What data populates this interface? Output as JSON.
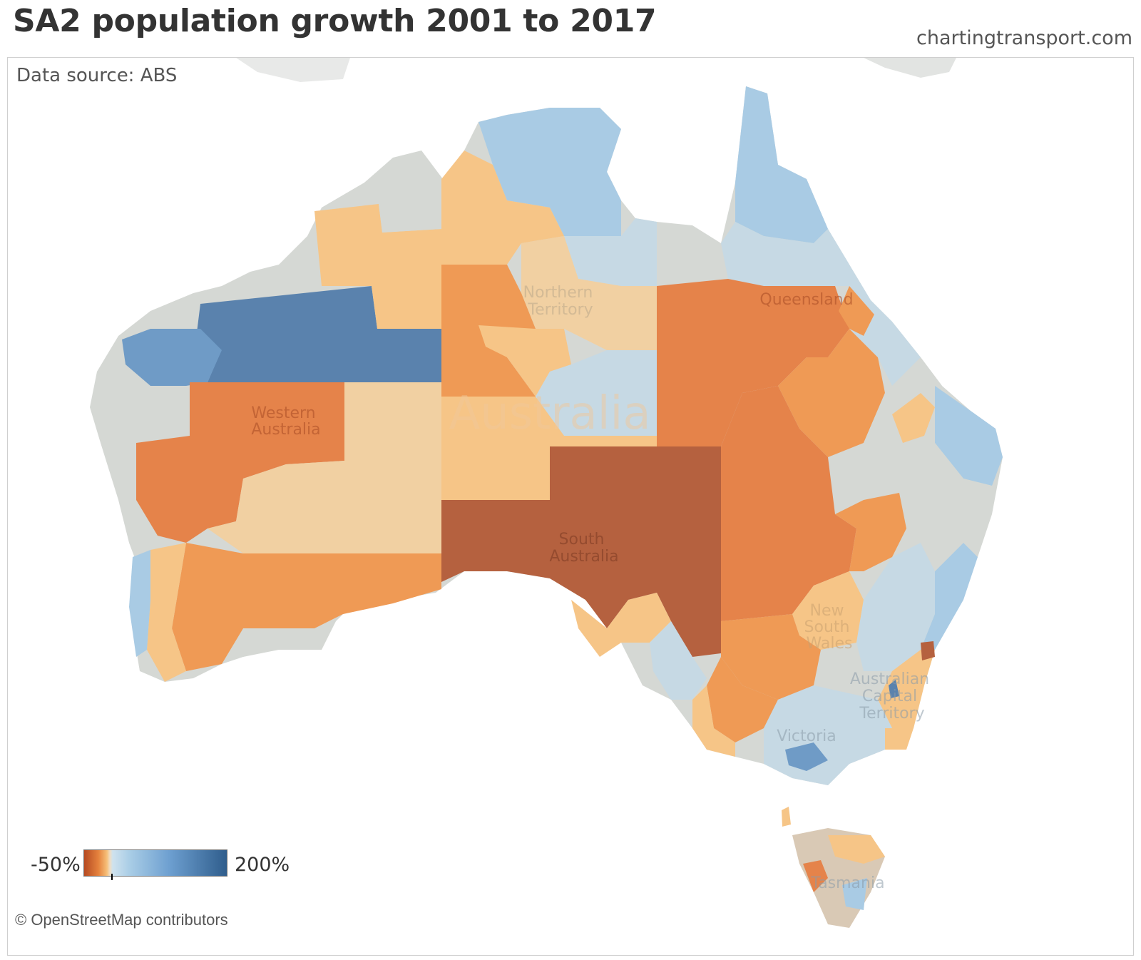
{
  "title": "SA2 population growth 2001 to 2017",
  "site": "chartingtransport.com",
  "source": "Data source: ABS",
  "credit": "© OpenStreetMap contributors",
  "legend": {
    "min_label": "-50%",
    "max_label": "200%"
  },
  "map": {
    "country_label": "Australia",
    "regions": [
      {
        "key": "wa",
        "lines": [
          "Western",
          "Australia"
        ]
      },
      {
        "key": "nt",
        "lines": [
          "Northern",
          "Territory"
        ]
      },
      {
        "key": "qld",
        "lines": [
          "Queensland"
        ]
      },
      {
        "key": "sa",
        "lines": [
          "South",
          "Australia"
        ]
      },
      {
        "key": "nsw",
        "lines": [
          "New",
          "South",
          "Wales"
        ]
      },
      {
        "key": "act",
        "lines": [
          "Australian",
          "Capital",
          "Territory"
        ]
      },
      {
        "key": "vic",
        "lines": [
          "Victoria"
        ]
      },
      {
        "key": "tas",
        "lines": [
          "Tasmania"
        ]
      }
    ]
  },
  "colors": {
    "strong_decline": "#b5613f",
    "decline": "#e5834a",
    "moderate_decline": "#ef9a55",
    "slight_decline": "#f6c587",
    "stable_warm": "#f1d0a2",
    "neutral": "#d5d8d4",
    "slight_growth": "#c6d9e4",
    "growth": "#a9cbe4",
    "strong_growth": "#6f9bc6",
    "very_strong_growth": "#5a82ad"
  }
}
